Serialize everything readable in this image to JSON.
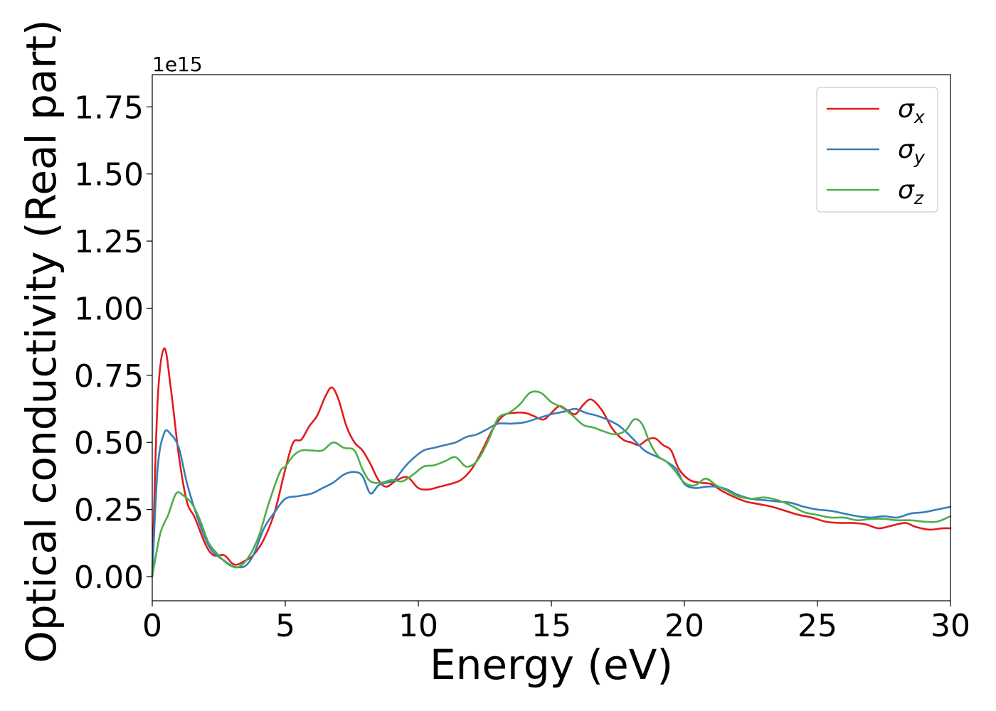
{
  "chart_data": {
    "type": "line",
    "xlabel": "Energy (eV)",
    "ylabel": "Optical conductivity (Real part)",
    "y_offset_text": "1e15",
    "xlim": [
      0,
      30
    ],
    "ylim": [
      -0.09,
      1.87
    ],
    "x_ticks": [
      0,
      5,
      10,
      15,
      20,
      25,
      30
    ],
    "x_tick_labels": [
      "0",
      "5",
      "10",
      "15",
      "20",
      "25",
      "30"
    ],
    "y_ticks": [
      0.0,
      0.25,
      0.5,
      0.75,
      1.0,
      1.25,
      1.5,
      1.75
    ],
    "y_tick_labels": [
      "0.00",
      "0.25",
      "0.50",
      "0.75",
      "1.00",
      "1.25",
      "1.50",
      "1.75"
    ],
    "grid": false,
    "legend_position": "top-right",
    "series": [
      {
        "name": "σ",
        "subscript": "x",
        "color": "#e41a1c",
        "x": [
          0,
          0.2,
          0.45,
          0.7,
          1.0,
          1.3,
          1.6,
          2.0,
          2.3,
          2.7,
          3.0,
          3.2,
          3.5,
          3.8,
          4.2,
          4.6,
          5.0,
          5.3,
          5.6,
          5.9,
          6.2,
          6.5,
          6.75,
          7.0,
          7.3,
          7.6,
          7.9,
          8.2,
          8.5,
          8.8,
          9.2,
          9.6,
          10.0,
          10.4,
          10.8,
          11.2,
          11.6,
          12.0,
          12.4,
          12.8,
          13.2,
          13.6,
          14.0,
          14.3,
          14.7,
          15.0,
          15.3,
          15.6,
          15.9,
          16.2,
          16.5,
          16.9,
          17.3,
          17.7,
          18.0,
          18.3,
          18.6,
          18.9,
          19.2,
          19.5,
          19.8,
          20.2,
          20.6,
          21.0,
          21.4,
          21.8,
          22.3,
          22.8,
          23.3,
          23.8,
          24.3,
          24.8,
          25.3,
          25.8,
          26.3,
          26.8,
          27.3,
          27.8,
          28.3,
          28.7,
          29.2,
          29.7,
          30.0
        ],
        "y": [
          0.0,
          0.65,
          0.85,
          0.7,
          0.45,
          0.28,
          0.22,
          0.12,
          0.08,
          0.08,
          0.05,
          0.045,
          0.06,
          0.08,
          0.14,
          0.24,
          0.4,
          0.5,
          0.51,
          0.56,
          0.6,
          0.67,
          0.705,
          0.66,
          0.56,
          0.5,
          0.47,
          0.42,
          0.36,
          0.335,
          0.36,
          0.37,
          0.33,
          0.325,
          0.335,
          0.345,
          0.36,
          0.4,
          0.47,
          0.55,
          0.6,
          0.61,
          0.61,
          0.6,
          0.585,
          0.61,
          0.635,
          0.62,
          0.605,
          0.64,
          0.66,
          0.62,
          0.55,
          0.51,
          0.5,
          0.49,
          0.51,
          0.515,
          0.49,
          0.47,
          0.4,
          0.36,
          0.35,
          0.345,
          0.32,
          0.3,
          0.28,
          0.27,
          0.26,
          0.245,
          0.23,
          0.22,
          0.205,
          0.2,
          0.2,
          0.195,
          0.18,
          0.19,
          0.2,
          0.185,
          0.175,
          0.18,
          0.18
        ]
      },
      {
        "name": "σ",
        "subscript": "y",
        "color": "#377eb8",
        "x": [
          0,
          0.2,
          0.45,
          0.7,
          1.0,
          1.3,
          1.6,
          2.0,
          2.3,
          2.7,
          3.0,
          3.2,
          3.5,
          3.8,
          4.2,
          4.6,
          5.0,
          5.5,
          6.0,
          6.4,
          6.8,
          7.2,
          7.6,
          7.9,
          8.2,
          8.5,
          8.8,
          9.1,
          9.5,
          9.8,
          10.2,
          10.6,
          11.0,
          11.4,
          11.8,
          12.2,
          12.6,
          13.0,
          13.5,
          14.0,
          14.5,
          15.0,
          15.5,
          15.9,
          16.3,
          16.7,
          17.1,
          17.5,
          17.8,
          18.1,
          18.5,
          18.9,
          19.3,
          19.7,
          20.0,
          20.4,
          20.8,
          21.2,
          21.6,
          22.0,
          22.5,
          23.0,
          23.5,
          24.0,
          24.5,
          25.0,
          25.5,
          26.0,
          26.5,
          27.0,
          27.5,
          28.0,
          28.5,
          29.0,
          29.5,
          30.0
        ],
        "y": [
          0.0,
          0.4,
          0.535,
          0.53,
          0.48,
          0.35,
          0.25,
          0.14,
          0.09,
          0.06,
          0.04,
          0.035,
          0.04,
          0.08,
          0.18,
          0.24,
          0.29,
          0.3,
          0.31,
          0.33,
          0.35,
          0.38,
          0.39,
          0.375,
          0.31,
          0.34,
          0.35,
          0.36,
          0.41,
          0.44,
          0.47,
          0.48,
          0.49,
          0.5,
          0.52,
          0.53,
          0.55,
          0.57,
          0.57,
          0.575,
          0.59,
          0.605,
          0.615,
          0.625,
          0.61,
          0.6,
          0.585,
          0.565,
          0.54,
          0.51,
          0.47,
          0.45,
          0.43,
          0.4,
          0.345,
          0.33,
          0.335,
          0.335,
          0.325,
          0.305,
          0.29,
          0.285,
          0.28,
          0.275,
          0.26,
          0.25,
          0.245,
          0.235,
          0.225,
          0.22,
          0.225,
          0.22,
          0.235,
          0.24,
          0.25,
          0.26
        ]
      },
      {
        "name": "σ",
        "subscript": "z",
        "color": "#4daf4a",
        "x": [
          0,
          0.3,
          0.6,
          0.9,
          1.2,
          1.5,
          1.8,
          2.1,
          2.4,
          2.8,
          3.2,
          3.6,
          4.0,
          4.4,
          4.8,
          5.0,
          5.3,
          5.6,
          6.0,
          6.4,
          6.8,
          7.2,
          7.6,
          7.9,
          8.2,
          8.6,
          9.0,
          9.4,
          9.8,
          10.2,
          10.6,
          11.0,
          11.4,
          11.8,
          12.2,
          12.6,
          13.0,
          13.4,
          13.8,
          14.2,
          14.6,
          15.0,
          15.4,
          15.8,
          16.2,
          16.6,
          17.0,
          17.4,
          17.8,
          18.1,
          18.4,
          18.7,
          19.0,
          19.3,
          19.6,
          20.0,
          20.4,
          20.8,
          21.2,
          21.6,
          22.0,
          22.5,
          23.0,
          23.5,
          24.0,
          24.5,
          25.0,
          25.5,
          26.0,
          26.5,
          27.0,
          27.5,
          28.0,
          28.5,
          29.0,
          29.5,
          30.0
        ],
        "y": [
          0.0,
          0.16,
          0.23,
          0.31,
          0.3,
          0.27,
          0.21,
          0.13,
          0.09,
          0.05,
          0.035,
          0.07,
          0.15,
          0.28,
          0.39,
          0.41,
          0.45,
          0.47,
          0.47,
          0.47,
          0.5,
          0.48,
          0.47,
          0.4,
          0.355,
          0.35,
          0.36,
          0.355,
          0.38,
          0.41,
          0.415,
          0.43,
          0.445,
          0.41,
          0.43,
          0.5,
          0.59,
          0.61,
          0.64,
          0.685,
          0.685,
          0.65,
          0.63,
          0.6,
          0.565,
          0.555,
          0.54,
          0.53,
          0.545,
          0.585,
          0.57,
          0.5,
          0.45,
          0.43,
          0.4,
          0.35,
          0.34,
          0.365,
          0.34,
          0.32,
          0.3,
          0.29,
          0.295,
          0.285,
          0.265,
          0.24,
          0.23,
          0.22,
          0.22,
          0.21,
          0.215,
          0.215,
          0.21,
          0.21,
          0.205,
          0.205,
          0.225
        ]
      }
    ]
  }
}
